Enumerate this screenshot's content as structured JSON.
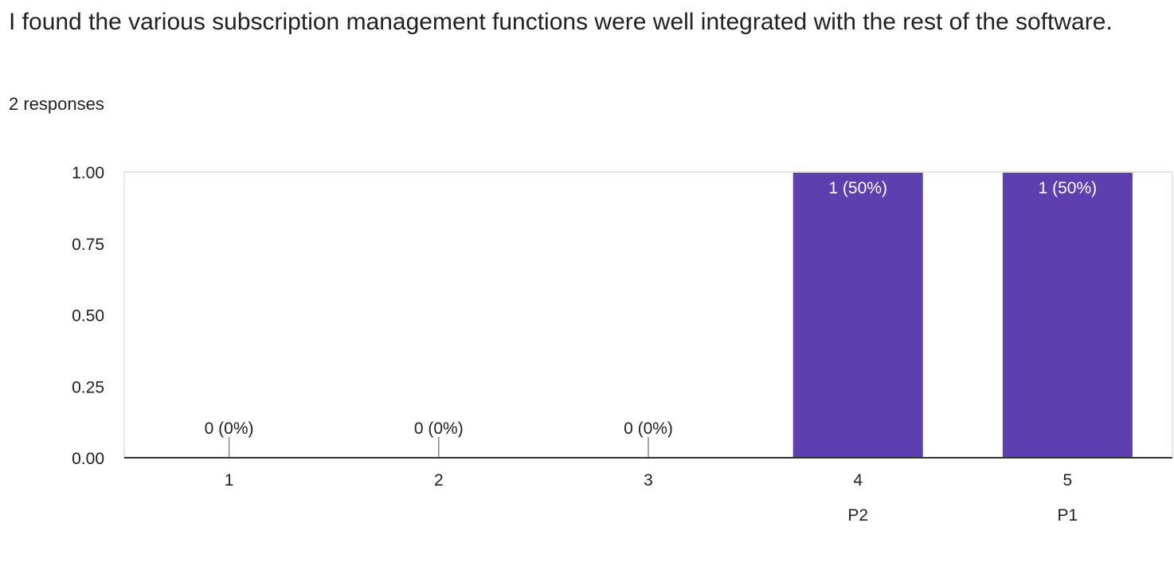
{
  "question": {
    "title": "I found the various subscription management functions were well integrated with the rest of the software.",
    "response_count": "2 responses"
  },
  "colors": {
    "bar": "#5e3fb0",
    "bar_label_inside": "#ffffff",
    "bar_label_outside": "#202124",
    "axis": "#333333",
    "gridline": "#e6e6e6",
    "tick_text": "#202124"
  },
  "chart_data": {
    "type": "bar",
    "title": "",
    "xlabel": "",
    "ylabel": "",
    "categories": [
      "1",
      "2",
      "3",
      "4",
      "5"
    ],
    "category_sublabels": [
      "",
      "",
      "",
      "P2",
      "P1"
    ],
    "values": [
      0,
      0,
      0,
      1,
      1
    ],
    "data_labels": [
      "0 (0%)",
      "0 (0%)",
      "0 (0%)",
      "1 (50%)",
      "1 (50%)"
    ],
    "ylim": [
      0,
      1
    ],
    "yticks": [
      "0.00",
      "0.25",
      "0.50",
      "0.75",
      "1.00"
    ],
    "ytick_values": [
      0,
      0.25,
      0.5,
      0.75,
      1
    ],
    "grid": false
  }
}
